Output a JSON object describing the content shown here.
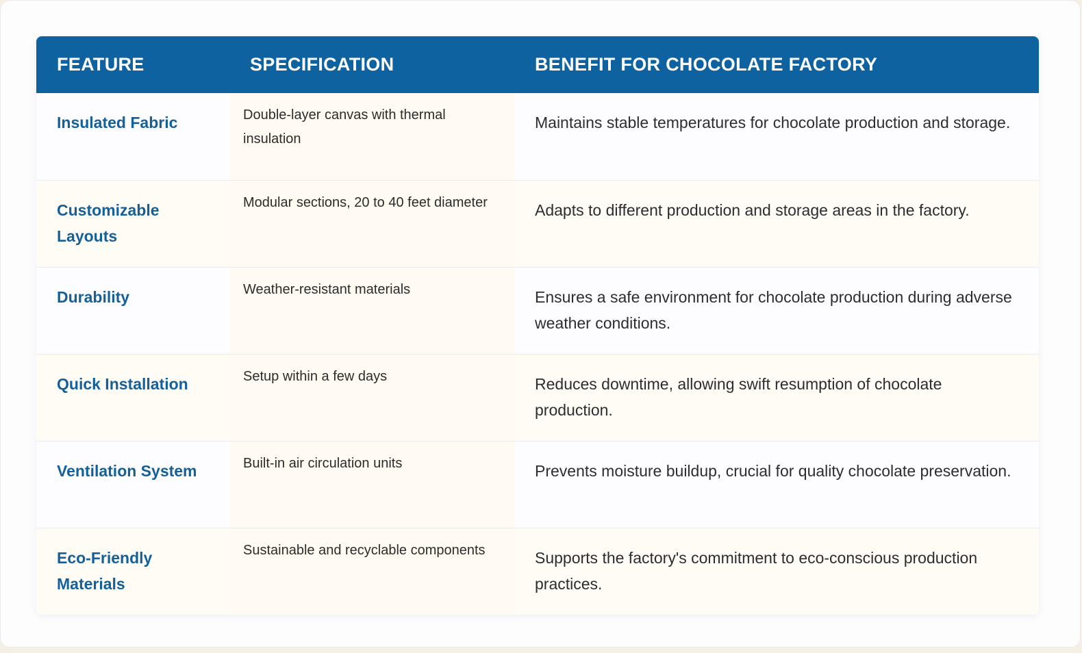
{
  "colors": {
    "header_bg": "#0e62a0",
    "header_text": "#ffffff",
    "feature_text": "#14609a",
    "body_text": "#2d2d31",
    "row_odd_bg": "#fdfcff",
    "row_even_bg": "#fffbf5",
    "spec_col_bg": "#fffaf2"
  },
  "table": {
    "headers": [
      "Feature",
      "Specification",
      "Benefit for Chocolate Factory"
    ],
    "rows": [
      {
        "feature": "Insulated Fabric",
        "specification": "Double-layer canvas with thermal insulation",
        "benefit": "Maintains stable temperatures for chocolate production and storage."
      },
      {
        "feature": "Customizable Layouts",
        "specification": "Modular sections, 20 to 40 feet diameter",
        "benefit": "Adapts to different production and storage areas in the factory."
      },
      {
        "feature": "Durability",
        "specification": "Weather-resistant materials",
        "benefit": "Ensures a safe environment for chocolate production during adverse weather conditions."
      },
      {
        "feature": "Quick Installation",
        "specification": "Setup within a few days",
        "benefit": "Reduces downtime, allowing swift resumption of chocolate production."
      },
      {
        "feature": "Ventilation System",
        "specification": "Built-in air circulation units",
        "benefit": "Prevents moisture buildup, crucial for quality chocolate preservation."
      },
      {
        "feature": "Eco-Friendly Materials",
        "specification": "Sustainable and recyclable components",
        "benefit": "Supports the factory's commitment to eco-conscious production practices."
      }
    ]
  }
}
